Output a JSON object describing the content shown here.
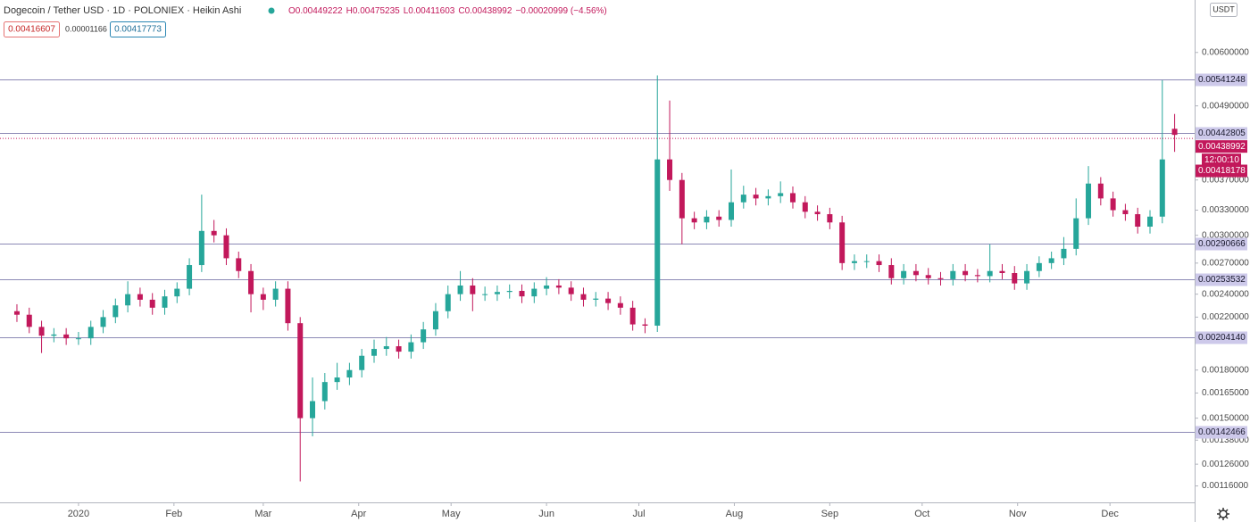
{
  "header": {
    "title": "Dogecoin / Tether USD · 1D · POLONIEX · Heikin Ashi",
    "ohlc_labels": [
      "O",
      "H",
      "L",
      "C"
    ],
    "change": "−0.00020999 (−4.56%)",
    "bid": "0.00416607",
    "spread": "0.00001166",
    "ask": "0.00417773",
    "currency": "USDT"
  },
  "chart_data": {
    "type": "candlestick",
    "log_scale": true,
    "up_color": "#26a69a",
    "down_color": "#c2185b",
    "level_color": "#8c89b5",
    "ylim": [
      0.00109,
      0.00732
    ],
    "yticks": [
      {
        "value": 0.006,
        "label": "0.00600000"
      },
      {
        "value": 0.0049,
        "label": "0.00490000"
      },
      {
        "value": 0.0037,
        "label": "0.00370000"
      },
      {
        "value": 0.0033,
        "label": "0.00330000"
      },
      {
        "value": 0.003,
        "label": "0.00300000"
      },
      {
        "value": 0.0027,
        "label": "0.00270000"
      },
      {
        "value": 0.0024,
        "label": "0.00240000"
      },
      {
        "value": 0.0022,
        "label": "0.00220000"
      },
      {
        "value": 0.0018,
        "label": "0.00180000"
      },
      {
        "value": 0.00165,
        "label": "0.00165000"
      },
      {
        "value": 0.0015,
        "label": "0.00150000"
      },
      {
        "value": 0.00138,
        "label": "0.00138000"
      },
      {
        "value": 0.00126,
        "label": "0.00126000"
      },
      {
        "value": 0.00116,
        "label": "0.00116000"
      }
    ],
    "xlim": [
      -25.5,
      362.5
    ],
    "xticks": [
      {
        "value": 0,
        "label": "2020"
      },
      {
        "value": 31,
        "label": "Feb"
      },
      {
        "value": 60,
        "label": "Mar"
      },
      {
        "value": 91,
        "label": "Apr"
      },
      {
        "value": 121,
        "label": "May"
      },
      {
        "value": 152,
        "label": "Jun"
      },
      {
        "value": 182,
        "label": "Jul"
      },
      {
        "value": 213,
        "label": "Aug"
      },
      {
        "value": 244,
        "label": "Sep"
      },
      {
        "value": 274,
        "label": "Oct"
      },
      {
        "value": 305,
        "label": "Nov"
      },
      {
        "value": 335,
        "label": "Dec"
      }
    ],
    "levels": [
      {
        "value": 0.00541248,
        "label": "0.00541248"
      },
      {
        "value": 0.00442805,
        "label": "0.00442805"
      },
      {
        "value": 0.00290666,
        "label": "0.00290666"
      },
      {
        "value": 0.00253532,
        "label": "0.00253532"
      },
      {
        "value": 0.0020414,
        "label": "0.00204140"
      },
      {
        "value": 0.00142466,
        "label": "0.00142466"
      }
    ],
    "countdown": "12:00:10",
    "low_marker": 0.00418178,
    "candles": {
      "x": [
        -20,
        -16,
        -12,
        -8,
        -4,
        0,
        4,
        8,
        12,
        16,
        20,
        24,
        28,
        32,
        36,
        40,
        44,
        48,
        52,
        56,
        60,
        64,
        68,
        72,
        76,
        80,
        84,
        88,
        92,
        96,
        100,
        104,
        108,
        112,
        116,
        120,
        124,
        128,
        132,
        136,
        140,
        144,
        148,
        152,
        156,
        160,
        164,
        168,
        172,
        176,
        180,
        184,
        188,
        192,
        196,
        200,
        204,
        208,
        212,
        216,
        220,
        224,
        228,
        232,
        236,
        240,
        244,
        248,
        252,
        256,
        260,
        264,
        268,
        272,
        276,
        280,
        284,
        288,
        292,
        296,
        300,
        304,
        308,
        312,
        316,
        320,
        324,
        328,
        332,
        336,
        340,
        344,
        348,
        352,
        356
      ],
      "open": [
        0.00225,
        0.00222,
        0.00212,
        0.00205,
        0.00206,
        0.00203,
        0.00203,
        0.00212,
        0.0022,
        0.0023,
        0.0024,
        0.00235,
        0.00228,
        0.00238,
        0.00245,
        0.00268,
        0.00305,
        0.003,
        0.00275,
        0.00262,
        0.0024,
        0.00235,
        0.00245,
        0.00215,
        0.0015,
        0.0016,
        0.00172,
        0.00175,
        0.0018,
        0.0019,
        0.00195,
        0.00197,
        0.00193,
        0.002,
        0.0021,
        0.00225,
        0.0024,
        0.00248,
        0.0024,
        0.0024,
        0.00242,
        0.00243,
        0.00238,
        0.00245,
        0.00248,
        0.00246,
        0.0024,
        0.00235,
        0.00236,
        0.00232,
        0.00228,
        0.00214,
        0.00213,
        0.004,
        0.0037,
        0.0032,
        0.00315,
        0.00322,
        0.00318,
        0.0034,
        0.0035,
        0.00345,
        0.00348,
        0.00352,
        0.0034,
        0.00328,
        0.00325,
        0.00315,
        0.0027,
        0.00272,
        0.00272,
        0.00268,
        0.00255,
        0.00262,
        0.00258,
        0.00255,
        0.00254,
        0.00262,
        0.00258,
        0.00257,
        0.00262,
        0.0026,
        0.0025,
        0.00262,
        0.0027,
        0.00275,
        0.00285,
        0.0032,
        0.00365,
        0.00345,
        0.0033,
        0.00325,
        0.0031,
        0.00322,
        0.00449222
      ],
      "high": [
        0.00231,
        0.00228,
        0.00217,
        0.00211,
        0.00211,
        0.00208,
        0.00217,
        0.00226,
        0.00236,
        0.00252,
        0.00246,
        0.00241,
        0.00244,
        0.00251,
        0.00275,
        0.0035,
        0.00318,
        0.00308,
        0.00282,
        0.00269,
        0.00246,
        0.00252,
        0.00252,
        0.0022,
        0.00175,
        0.00178,
        0.00185,
        0.00185,
        0.00195,
        0.00202,
        0.00204,
        0.00202,
        0.00206,
        0.00216,
        0.00232,
        0.00248,
        0.00262,
        0.00255,
        0.00247,
        0.00248,
        0.00249,
        0.00249,
        0.00251,
        0.00256,
        0.00254,
        0.00252,
        0.00246,
        0.00242,
        0.00242,
        0.00238,
        0.00234,
        0.00219,
        0.0055,
        0.005,
        0.0038,
        0.00328,
        0.0033,
        0.0033,
        0.00385,
        0.00362,
        0.00359,
        0.00357,
        0.00368,
        0.00361,
        0.00348,
        0.00336,
        0.00333,
        0.00323,
        0.00279,
        0.00279,
        0.00279,
        0.00275,
        0.00269,
        0.00269,
        0.00265,
        0.00261,
        0.00269,
        0.00269,
        0.00264,
        0.0029,
        0.00269,
        0.00267,
        0.00269,
        0.00277,
        0.00282,
        0.00298,
        0.00345,
        0.0039,
        0.00374,
        0.00354,
        0.00338,
        0.00333,
        0.0033,
        0.0054,
        0.00475235
      ],
      "low": [
        0.00216,
        0.00207,
        0.00192,
        0.002,
        0.00198,
        0.00198,
        0.00198,
        0.00207,
        0.00215,
        0.00224,
        0.00229,
        0.00222,
        0.00222,
        0.00232,
        0.00239,
        0.00261,
        0.00292,
        0.00268,
        0.00255,
        0.00224,
        0.00226,
        0.00229,
        0.00209,
        0.00118,
        0.0014,
        0.00155,
        0.00167,
        0.0017,
        0.00175,
        0.00185,
        0.0019,
        0.00188,
        0.00188,
        0.00195,
        0.00205,
        0.00219,
        0.00234,
        0.00225,
        0.00234,
        0.00234,
        0.00236,
        0.00232,
        0.00232,
        0.00239,
        0.0024,
        0.00234,
        0.00229,
        0.00229,
        0.00226,
        0.00222,
        0.00209,
        0.00207,
        0.00208,
        0.00355,
        0.0029,
        0.00307,
        0.00307,
        0.0031,
        0.0031,
        0.00332,
        0.00336,
        0.00336,
        0.00339,
        0.00332,
        0.0032,
        0.00317,
        0.00307,
        0.00263,
        0.00263,
        0.00265,
        0.00261,
        0.00249,
        0.00249,
        0.00252,
        0.00249,
        0.00248,
        0.00248,
        0.00252,
        0.00251,
        0.00251,
        0.00254,
        0.00244,
        0.00244,
        0.00256,
        0.00264,
        0.00268,
        0.00278,
        0.00312,
        0.00336,
        0.00322,
        0.00317,
        0.00302,
        0.00302,
        0.00314,
        0.00411603
      ],
      "close": [
        0.00222,
        0.00212,
        0.00205,
        0.00206,
        0.00203,
        0.00203,
        0.00212,
        0.0022,
        0.0023,
        0.0024,
        0.00235,
        0.00228,
        0.00238,
        0.00245,
        0.00268,
        0.00305,
        0.003,
        0.00275,
        0.00262,
        0.0024,
        0.00235,
        0.00245,
        0.00215,
        0.0015,
        0.0016,
        0.00172,
        0.00175,
        0.0018,
        0.0019,
        0.00195,
        0.00197,
        0.00193,
        0.002,
        0.0021,
        0.00225,
        0.0024,
        0.00248,
        0.0024,
        0.0024,
        0.00242,
        0.00243,
        0.00238,
        0.00245,
        0.00248,
        0.00246,
        0.0024,
        0.00235,
        0.00236,
        0.00232,
        0.00228,
        0.00214,
        0.00213,
        0.004,
        0.0037,
        0.0032,
        0.00315,
        0.00322,
        0.00318,
        0.0034,
        0.0035,
        0.00345,
        0.00348,
        0.00352,
        0.0034,
        0.00328,
        0.00325,
        0.00315,
        0.0027,
        0.00272,
        0.00272,
        0.00268,
        0.00255,
        0.00262,
        0.00258,
        0.00255,
        0.00254,
        0.00262,
        0.00258,
        0.00257,
        0.00262,
        0.0026,
        0.0025,
        0.00262,
        0.0027,
        0.00275,
        0.00285,
        0.0032,
        0.00365,
        0.00345,
        0.0033,
        0.00325,
        0.0031,
        0.00322,
        0.004,
        0.00438992
      ]
    }
  }
}
